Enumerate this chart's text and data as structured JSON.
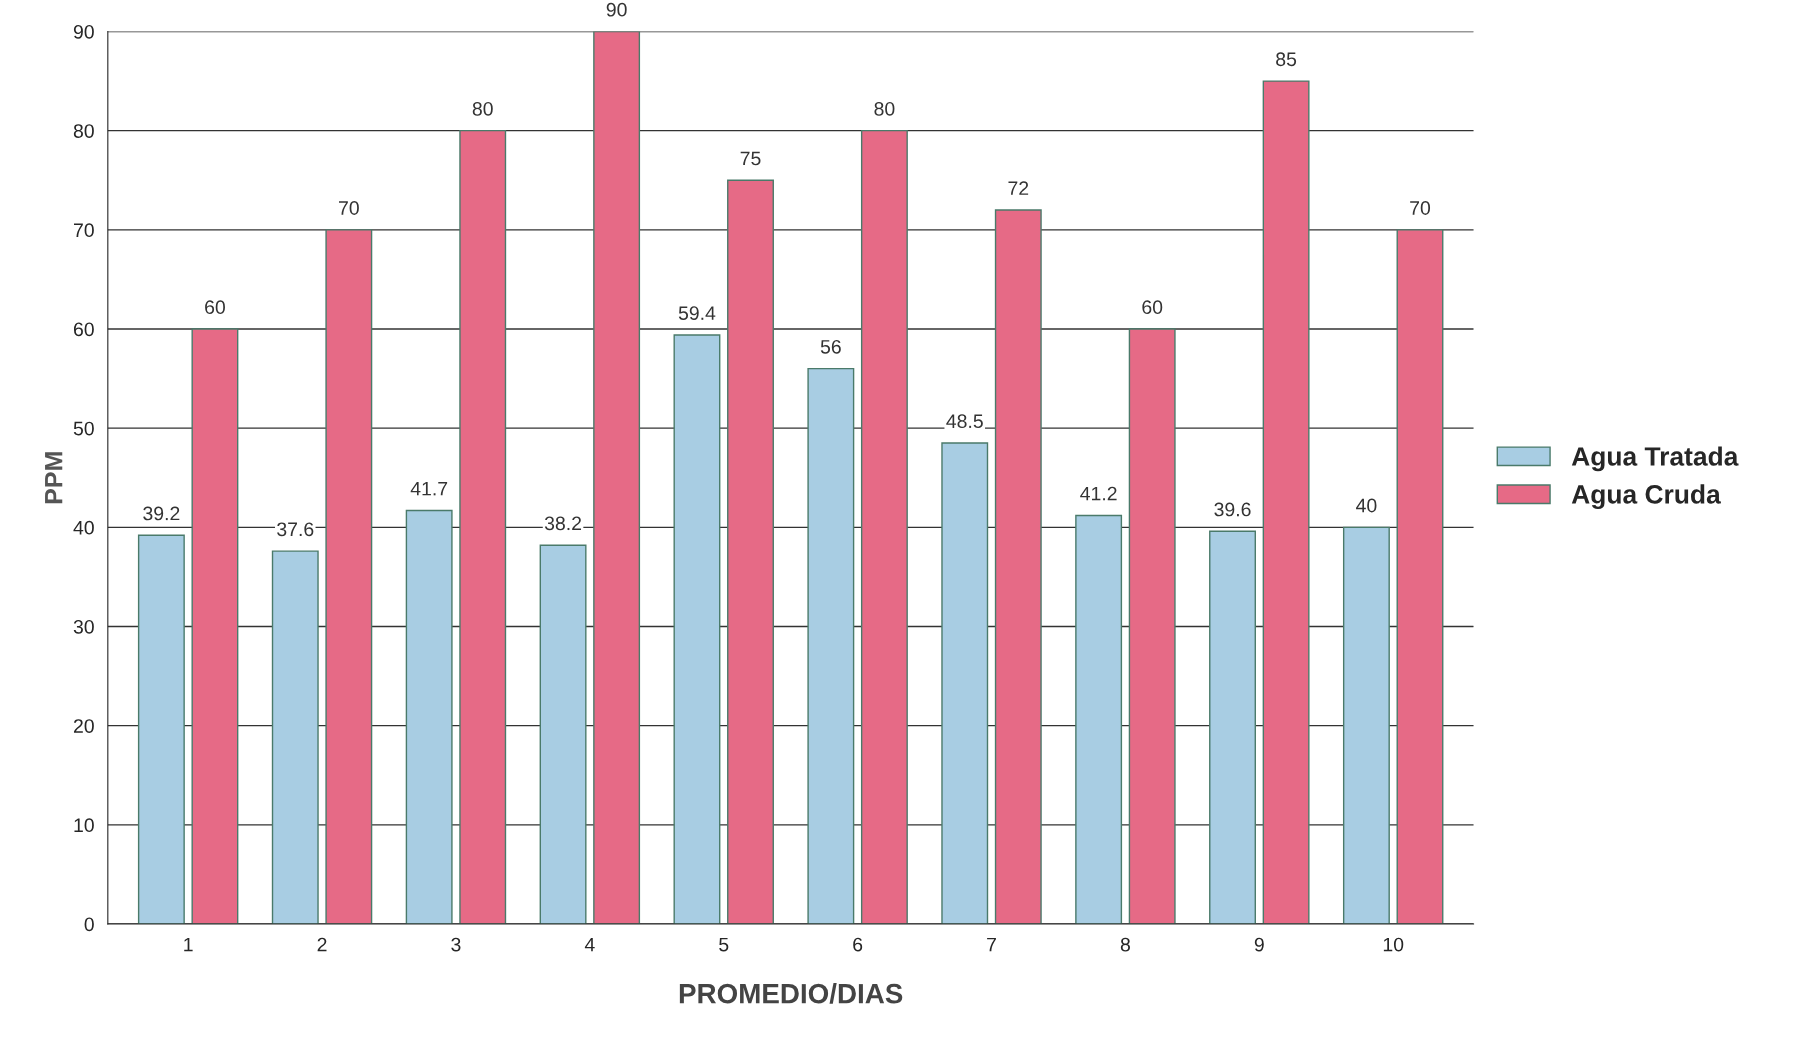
{
  "chart_data": {
    "type": "bar",
    "xlabel": "PROMEDIO/DIAS",
    "ylabel": "PPM",
    "categories": [
      "1",
      "2",
      "3",
      "4",
      "5",
      "6",
      "7",
      "8",
      "9",
      "10"
    ],
    "series": [
      {
        "name": "Agua Tratada",
        "color": "#a8cde3",
        "values": [
          39.2,
          37.6,
          41.7,
          38.2,
          59.4,
          56,
          48.5,
          41.2,
          39.6,
          40
        ]
      },
      {
        "name": "Agua Cruda",
        "color": "#e66a86",
        "values": [
          60,
          70,
          80,
          90,
          75,
          80,
          72,
          60,
          85,
          70
        ]
      }
    ],
    "ylim": [
      0,
      90
    ],
    "yticks": [
      0,
      10,
      20,
      30,
      40,
      50,
      60,
      70,
      80,
      90
    ],
    "grid": "y",
    "legend": "right",
    "data_labels": true
  }
}
